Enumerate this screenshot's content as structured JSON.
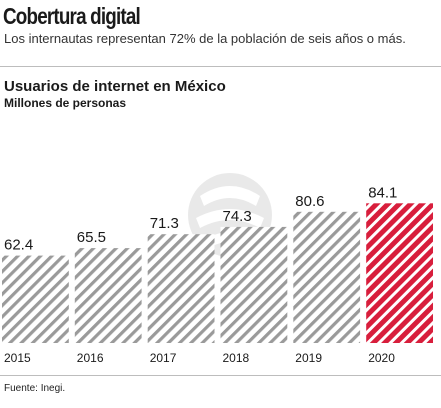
{
  "header": {
    "headline": "Cobertura digital",
    "subtitle": "Los internautas representan 72% de la población de seis años o más."
  },
  "chart_data": {
    "type": "bar",
    "title": "Usuarios de internet en México",
    "ylabel": "Millones de personas",
    "xlabel": "",
    "categories": [
      "2015",
      "2016",
      "2017",
      "2018",
      "2019",
      "2020"
    ],
    "values": [
      62.4,
      65.5,
      71.3,
      74.3,
      80.6,
      84.1
    ],
    "value_labels": [
      "62.4",
      "65.5",
      "71.3",
      "74.3",
      "80.6",
      "84.1"
    ],
    "highlight_index": 5,
    "colors": {
      "bars": "#9a9a9a",
      "highlight": "#d81e3c"
    },
    "grid": false,
    "legend": "none"
  },
  "footer": {
    "source": "Fuente: Inegi."
  }
}
